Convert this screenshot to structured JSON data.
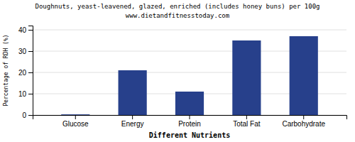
{
  "chart_data": {
    "type": "bar",
    "title": "Doughnuts, yeast-leavened, glazed, enriched (includes honey buns) per 100g",
    "subtitle": "www.dietandfitnesstoday.com",
    "categories": [
      "Glucose",
      "Energy",
      "Protein",
      "Total Fat",
      "Carbohydrate"
    ],
    "values": [
      0.3,
      21,
      11,
      35,
      37
    ],
    "color": "#27408B",
    "xlabel": "Different Nutrients",
    "ylabel": "Percentage of RDH (%)",
    "ylim": [
      0,
      42
    ],
    "yticks": [
      0,
      10,
      20,
      30,
      40
    ],
    "grid": true
  }
}
